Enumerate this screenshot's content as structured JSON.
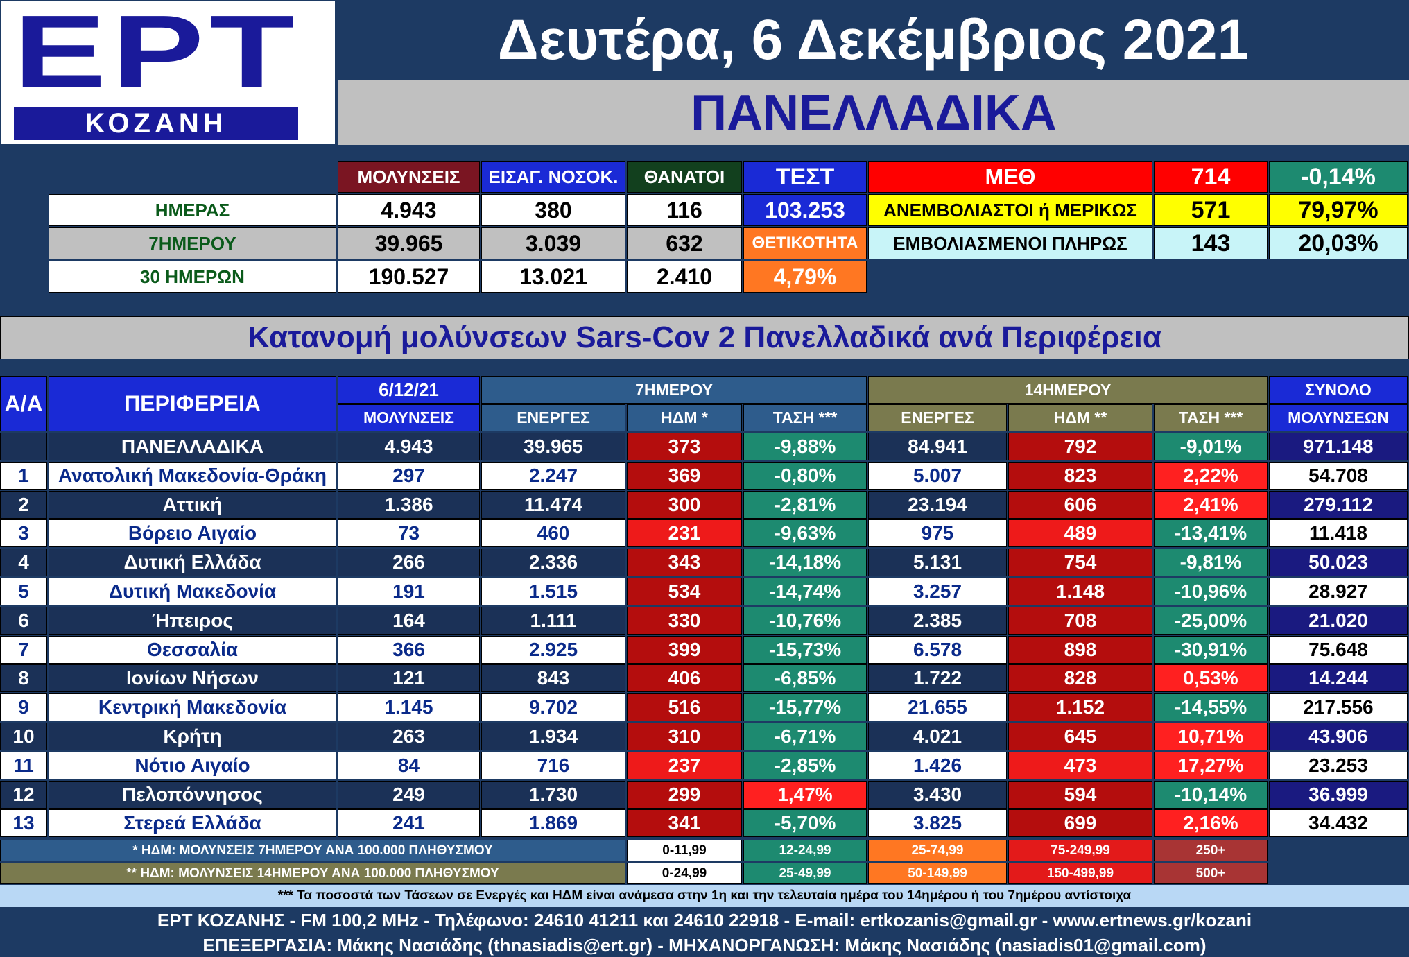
{
  "logo": {
    "name": "ΕΡΤ",
    "city": "ΚΟΖΑΝΗ"
  },
  "date": "Δευτέρα, 6 Δεκέμβριος 2021",
  "panel_title": "ΠΑΝΕΛΛΑΔΙΚΑ",
  "summary": {
    "headers": {
      "infections": "ΜΟΛΥΝΣΕΙΣ",
      "hospital": "ΕΙΣΑΓ. ΝΟΣΟΚ.",
      "deaths": "ΘΑΝΑΤΟΙ",
      "tests": "ΤΕΣΤ"
    },
    "rows": [
      {
        "label": "ΗΜΕΡΑΣ",
        "infections": "4.943",
        "hospital": "380",
        "deaths": "116"
      },
      {
        "label": "7ΗΜΕΡΟΥ",
        "infections": "39.965",
        "hospital": "3.039",
        "deaths": "632"
      },
      {
        "label": "30 ΗΜΕΡΩΝ",
        "infections": "190.527",
        "hospital": "13.021",
        "deaths": "2.410"
      }
    ],
    "tests_value": "103.253",
    "positivity_label": "ΘΕΤΙΚΟΤΗΤΑ",
    "positivity_value": "4,79%",
    "icu": [
      {
        "label": "ΜΕΘ",
        "count": "714",
        "pct": "-0,14%"
      },
      {
        "label": "ΑΝΕΜΒΟΛΙΑΣΤΟΙ ή ΜΕΡΙΚΩΣ",
        "count": "571",
        "pct": "79,97%"
      },
      {
        "label": "ΕΜΒΟΛΙΑΣΜΕΝΟΙ ΠΛΗΡΩΣ",
        "count": "143",
        "pct": "20,03%"
      }
    ]
  },
  "distribution_title": "Κατανομή μολύνσεων Sars-Cov 2 Πανελλαδικά ανά Περιφέρεια",
  "table": {
    "headers": {
      "aa": "Α/Α",
      "region": "ΠΕΡΙΦΕΡΕΙΑ",
      "date": "6/12/21",
      "infections": "ΜΟΛΥΝΣΕΙΣ",
      "seven_day": "7ΗΜΕΡΟΥ",
      "fourteen_day": "14ΗΜΕΡΟΥ",
      "total_top": "ΣΥΝΟΛΟ",
      "total_bottom": "ΜΟΛΥΝΣΕΩΝ",
      "active": "ΕΝΕΡΓΕΣ",
      "ndm7": "ΗΔΜ *",
      "trend": "ΤΑΣΗ ***",
      "ndm14": "ΗΔΜ **"
    },
    "national": {
      "name": "ΠΑΝΕΛΛΑΔΙΚΑ",
      "inf": "4.943",
      "act7": "39.965",
      "ndm7": "373",
      "t7": "-9,88%",
      "act14": "84.941",
      "ndm14": "792",
      "t14": "-9,01%",
      "total": "971.148"
    },
    "rows": [
      {
        "aa": "1",
        "name": "Ανατολική Μακεδονία-Θράκη",
        "inf": "297",
        "act7": "2.247",
        "ndm7": "369",
        "t7": "-0,80%",
        "act14": "5.007",
        "ndm14": "823",
        "t14": "2,22%",
        "total": "54.708"
      },
      {
        "aa": "2",
        "name": "Αττική",
        "inf": "1.386",
        "act7": "11.474",
        "ndm7": "300",
        "t7": "-2,81%",
        "act14": "23.194",
        "ndm14": "606",
        "t14": "2,41%",
        "total": "279.112"
      },
      {
        "aa": "3",
        "name": "Βόρειο Αιγαίο",
        "inf": "73",
        "act7": "460",
        "ndm7": "231",
        "t7": "-9,63%",
        "act14": "975",
        "ndm14": "489",
        "t14": "-13,41%",
        "total": "11.418"
      },
      {
        "aa": "4",
        "name": "Δυτική Ελλάδα",
        "inf": "266",
        "act7": "2.336",
        "ndm7": "343",
        "t7": "-14,18%",
        "act14": "5.131",
        "ndm14": "754",
        "t14": "-9,81%",
        "total": "50.023"
      },
      {
        "aa": "5",
        "name": "Δυτική Μακεδονία",
        "inf": "191",
        "act7": "1.515",
        "ndm7": "534",
        "t7": "-14,74%",
        "act14": "3.257",
        "ndm14": "1.148",
        "t14": "-10,96%",
        "total": "28.927"
      },
      {
        "aa": "6",
        "name": "Ήπειρος",
        "inf": "164",
        "act7": "1.111",
        "ndm7": "330",
        "t7": "-10,76%",
        "act14": "2.385",
        "ndm14": "708",
        "t14": "-25,00%",
        "total": "21.020"
      },
      {
        "aa": "7",
        "name": "Θεσσαλία",
        "inf": "366",
        "act7": "2.925",
        "ndm7": "399",
        "t7": "-15,73%",
        "act14": "6.578",
        "ndm14": "898",
        "t14": "-30,91%",
        "total": "75.648"
      },
      {
        "aa": "8",
        "name": "Ιονίων Νήσων",
        "inf": "121",
        "act7": "843",
        "ndm7": "406",
        "t7": "-6,85%",
        "act14": "1.722",
        "ndm14": "828",
        "t14": "0,53%",
        "total": "14.244"
      },
      {
        "aa": "9",
        "name": "Κεντρική Μακεδονία",
        "inf": "1.145",
        "act7": "9.702",
        "ndm7": "516",
        "t7": "-15,77%",
        "act14": "21.655",
        "ndm14": "1.152",
        "t14": "-14,55%",
        "total": "217.556"
      },
      {
        "aa": "10",
        "name": "Κρήτη",
        "inf": "263",
        "act7": "1.934",
        "ndm7": "310",
        "t7": "-6,71%",
        "act14": "4.021",
        "ndm14": "645",
        "t14": "10,71%",
        "total": "43.906"
      },
      {
        "aa": "11",
        "name": "Νότιο Αιγαίο",
        "inf": "84",
        "act7": "716",
        "ndm7": "237",
        "t7": "-2,85%",
        "act14": "1.426",
        "ndm14": "473",
        "t14": "17,27%",
        "total": "23.253"
      },
      {
        "aa": "12",
        "name": "Πελοπόννησος",
        "inf": "249",
        "act7": "1.730",
        "ndm7": "299",
        "t7": "1,47%",
        "act14": "3.430",
        "ndm14": "594",
        "t14": "-10,14%",
        "total": "36.999"
      },
      {
        "aa": "13",
        "name": "Στερεά Ελλάδα",
        "inf": "241",
        "act7": "1.869",
        "ndm7": "341",
        "t7": "-5,70%",
        "act14": "3.825",
        "ndm14": "699",
        "t14": "2,16%",
        "total": "34.432"
      }
    ]
  },
  "legend": {
    "note7": "* ΗΔΜ: ΜΟΛΥΝΣΕΙΣ 7ΗΜΕΡΟΥ ΑΝΑ 100.000 ΠΛΗΘΥΣΜΟΥ",
    "note14": "** ΗΔΜ: ΜΟΛΥΝΣΕΙΣ 14ΗΜΕΡΟΥ ΑΝΑ 100.000 ΠΛΗΘΥΣΜΟΥ",
    "ranges7": [
      "0-11,99",
      "12-24,99",
      "25-74,99",
      "75-249,99",
      "250+"
    ],
    "ranges14": [
      "0-24,99",
      "25-49,99",
      "50-149,99",
      "150-499,99",
      "500+"
    ],
    "colors": [
      "#ffffff",
      "#1d8a70",
      "#ff7722",
      "#e31a1a",
      "#a83434"
    ]
  },
  "footnote": "*** Τα ποσοστά των Τάσεων σε Ενεργές και ΗΔΜ είναι ανάμεσα στην 1η και την τελευταία ημέρα του 14ημέρου ή του 7ημέρου αντίστοιχα",
  "footer1": "ΕΡΤ ΚΟΖΑΝΗΣ - FM 100,2 MHz - Τηλέφωνο:  24610 41211 και 24610 22918 - E-mail: ertkozanis@gmail.gr - www.ertnews.gr/kozani",
  "footer2": "ΕΠΕΞΕΡΓΑΣΙΑ: Μάκης Νασιάδης (thnasiadis@ert.gr) - ΜΗΧΑΝΟΡΓΑΝΩΣΗ: Μάκης Νασιάδης (nasiadis01@gmail.com)"
}
